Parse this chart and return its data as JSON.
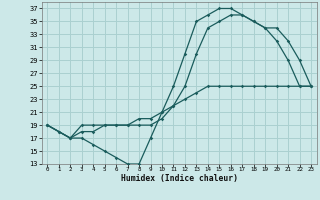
{
  "title": "",
  "xlabel": "Humidex (Indice chaleur)",
  "bg_color": "#cce8e8",
  "grid_color": "#aad0d0",
  "line_color": "#1a5c5c",
  "xlim": [
    -0.5,
    23.5
  ],
  "ylim": [
    13,
    38
  ],
  "xticks": [
    0,
    1,
    2,
    3,
    4,
    5,
    6,
    7,
    8,
    9,
    10,
    11,
    12,
    13,
    14,
    15,
    16,
    17,
    18,
    19,
    20,
    21,
    22,
    23
  ],
  "yticks": [
    13,
    15,
    17,
    19,
    21,
    23,
    25,
    27,
    29,
    31,
    33,
    35,
    37
  ],
  "curve1_x": [
    0,
    1,
    2,
    3,
    4,
    5,
    6,
    7,
    8,
    9,
    10,
    11,
    12,
    13,
    14,
    15,
    16,
    17,
    18,
    19,
    20,
    21,
    22,
    23
  ],
  "curve1_y": [
    19,
    18,
    17,
    17,
    16,
    15,
    14,
    13,
    13,
    17,
    21,
    25,
    30,
    35,
    36,
    37,
    37,
    36,
    35,
    34,
    32,
    29,
    25,
    25
  ],
  "curve2_x": [
    0,
    2,
    3,
    4,
    5,
    6,
    7,
    8,
    9,
    10,
    11,
    12,
    13,
    14,
    15,
    16,
    17,
    18,
    19,
    20,
    21,
    22,
    23
  ],
  "curve2_y": [
    19,
    17,
    19,
    19,
    19,
    19,
    19,
    19,
    19,
    20,
    22,
    25,
    30,
    34,
    35,
    36,
    36,
    35,
    34,
    34,
    32,
    29,
    25
  ],
  "curve3_x": [
    0,
    1,
    2,
    3,
    4,
    5,
    6,
    7,
    8,
    9,
    10,
    11,
    12,
    13,
    14,
    15,
    16,
    17,
    18,
    19,
    20,
    21,
    22,
    23
  ],
  "curve3_y": [
    19,
    18,
    17,
    18,
    18,
    19,
    19,
    19,
    20,
    20,
    21,
    22,
    23,
    24,
    25,
    25,
    25,
    25,
    25,
    25,
    25,
    25,
    25,
    25
  ]
}
